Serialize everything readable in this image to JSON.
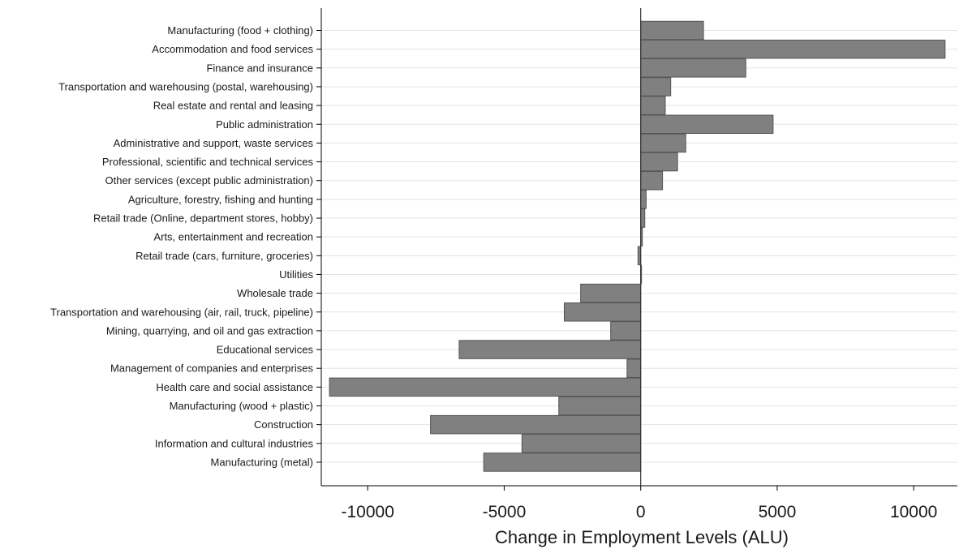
{
  "chart_data": {
    "type": "bar",
    "orientation": "horizontal",
    "xlabel": "Change in Employment Levels (ALU)",
    "ylabel": "",
    "xlim": [
      -11700,
      11600
    ],
    "xticks": [
      -10000,
      -5000,
      0,
      5000,
      10000
    ],
    "xtick_labels": [
      "-10000",
      "-5000",
      "0",
      "5000",
      "10000"
    ],
    "grid": "horizontal",
    "bar_color": "#808080",
    "bar_edge_color": "#555555",
    "categories": [
      "Manufacturing (food + clothing)",
      "Accommodation and food services",
      "Finance and insurance",
      "Transportation and warehousing (postal, warehousing)",
      "Real estate and rental and leasing",
      "Public administration",
      "Administrative and support, waste services",
      "Professional, scientific and technical services",
      "Other services (except public administration)",
      "Agriculture, forestry, fishing and hunting",
      "Retail trade (Online, department stores, hobby)",
      "Arts, entertainment and recreation",
      "Retail trade (cars, furniture, groceries)",
      "Utilities",
      "Wholesale trade",
      "Transportation and warehousing (air, rail, truck, pipeline)",
      "Mining, quarrying, and oil and gas extraction",
      "Educational services",
      "Management of companies and enterprises",
      "Health care and social assistance",
      "Manufacturing (wood + plastic)",
      "Construction",
      "Information and cultural industries",
      "Manufacturing (metal)"
    ],
    "values": [
      2300,
      11150,
      3850,
      1100,
      900,
      4850,
      1650,
      1350,
      800,
      200,
      150,
      60,
      -100,
      30,
      -2200,
      -2800,
      -1100,
      -6650,
      -500,
      -11400,
      -3000,
      -7700,
      -4350,
      -5750
    ]
  }
}
